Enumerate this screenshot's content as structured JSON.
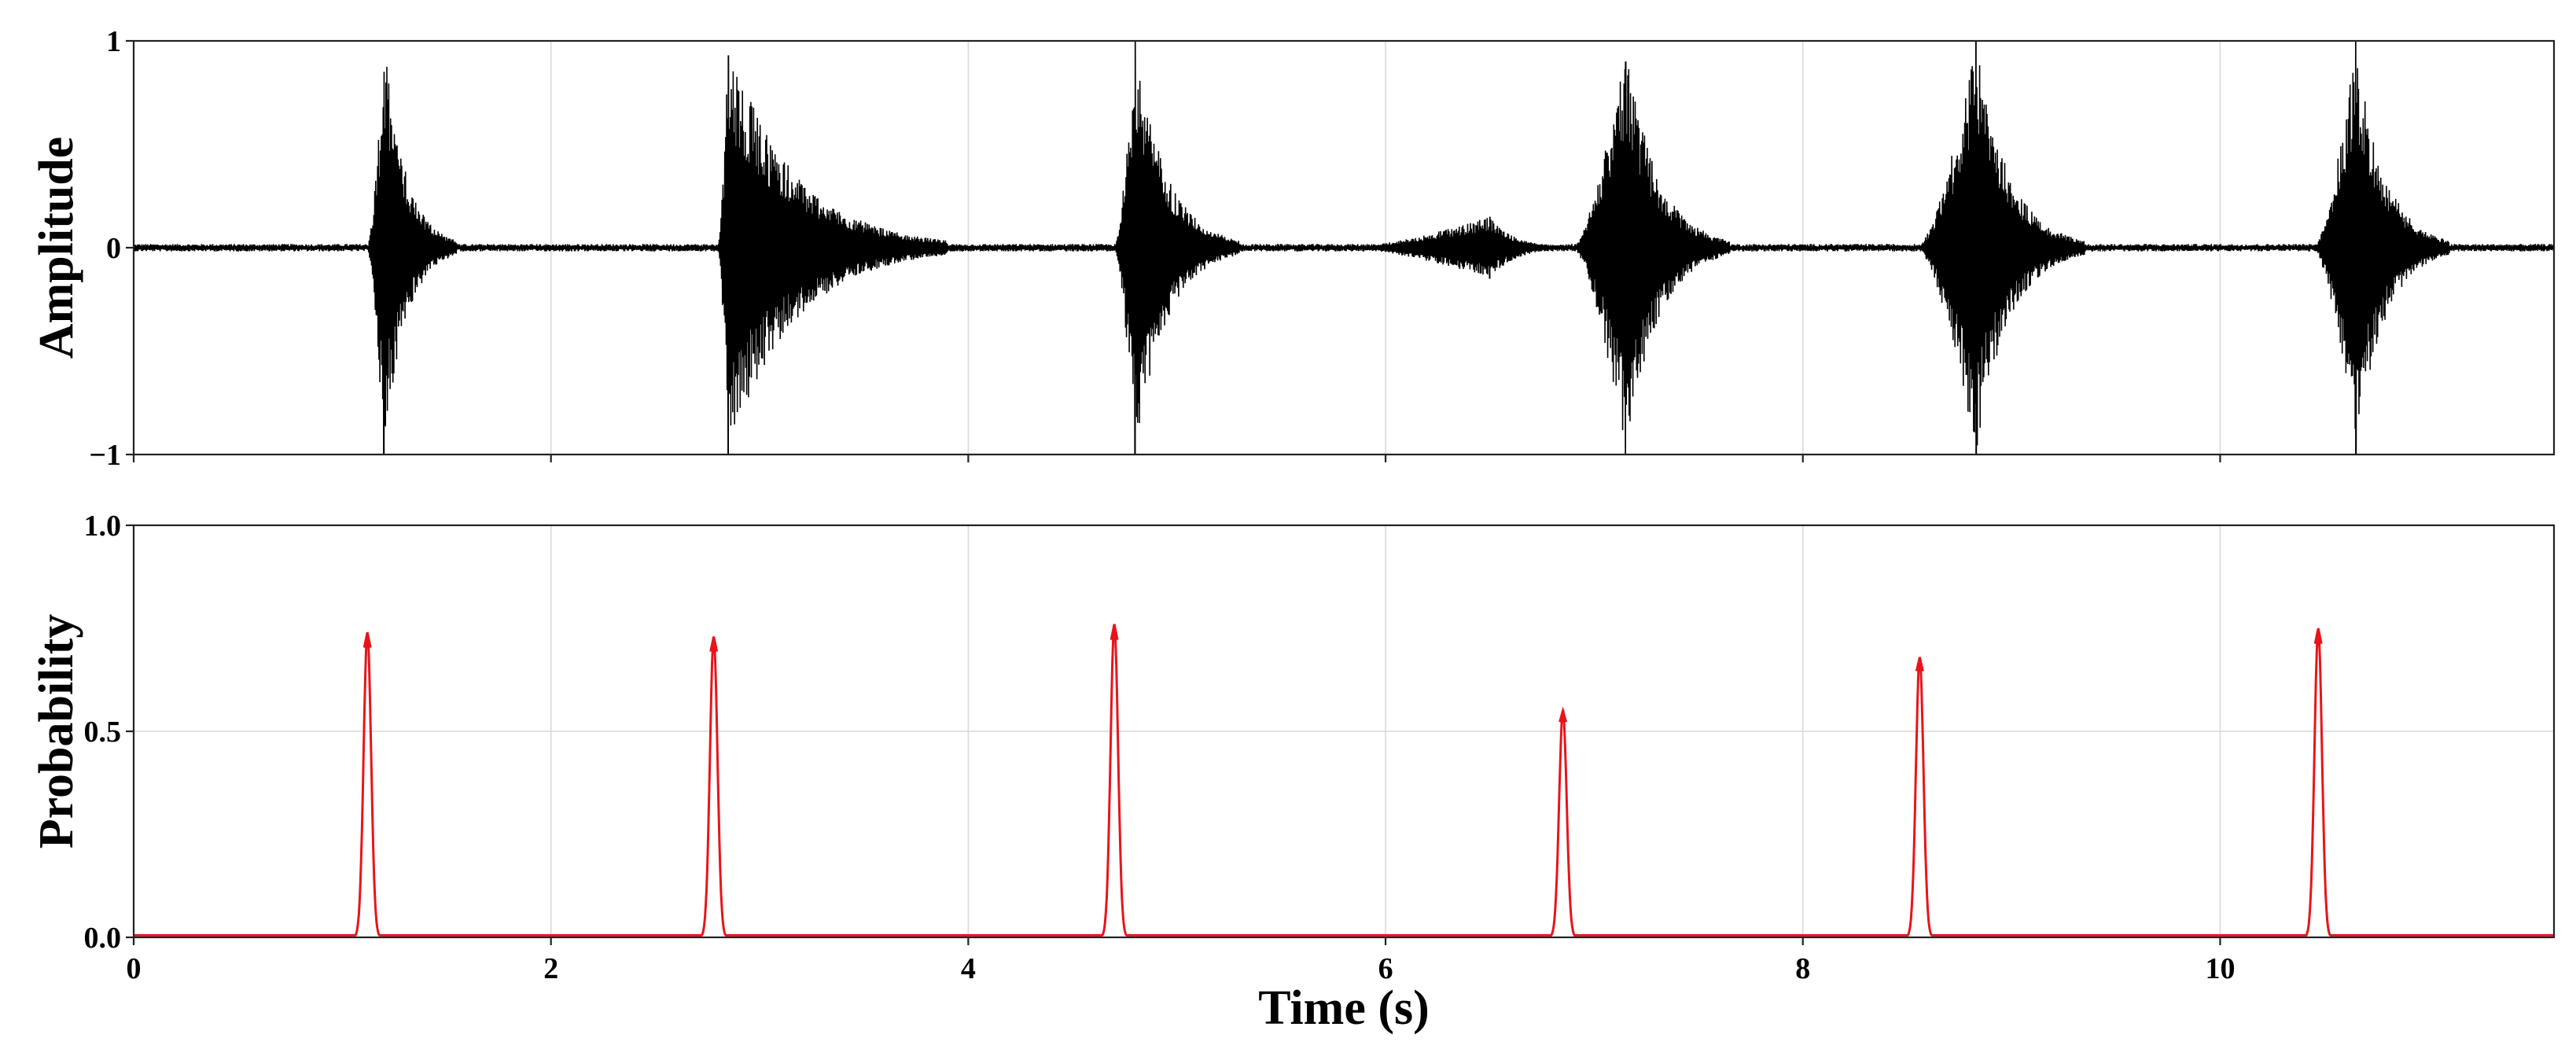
{
  "chart_data": [
    {
      "type": "line",
      "panel": "waveform",
      "xlabel": "",
      "ylabel": "Amplitude",
      "xlim": [
        0,
        11.6
      ],
      "ylim": [
        -1,
        1
      ],
      "yticks": [
        -1,
        0,
        1
      ],
      "ytick_labels": [
        "−1",
        "0",
        "1"
      ],
      "xticks": [
        0,
        2,
        4,
        6,
        8,
        10
      ],
      "xtick_labels_shown": false,
      "grid": true,
      "series": [
        {
          "color": "#000000",
          "noise_floor": 0.012,
          "bursts": [
            {
              "start": 1.12,
              "end": 1.55,
              "peak_time": 1.2,
              "peak_pos": 0.85,
              "peak_neg": -1.0
            },
            {
              "start": 2.8,
              "end": 3.9,
              "peak_time": 2.85,
              "peak_pos": 0.93,
              "peak_neg": -1.0
            },
            {
              "start": 4.7,
              "end": 5.3,
              "peak_time": 4.8,
              "peak_pos": 1.0,
              "peak_neg": -1.0
            },
            {
              "start": 5.8,
              "end": 6.9,
              "peak_time": 6.5,
              "peak_pos": 0.15,
              "peak_neg": -0.15
            },
            {
              "start": 6.9,
              "end": 7.65,
              "peak_time": 7.15,
              "peak_pos": 0.9,
              "peak_neg": -1.0
            },
            {
              "start": 8.55,
              "end": 9.35,
              "peak_time": 8.83,
              "peak_pos": 1.0,
              "peak_neg": -1.0
            },
            {
              "start": 10.45,
              "end": 11.1,
              "peak_time": 10.65,
              "peak_pos": 1.0,
              "peak_neg": -1.0
            }
          ]
        }
      ]
    },
    {
      "type": "line",
      "panel": "probability",
      "xlabel": "Time (s)",
      "ylabel": "Probability",
      "xlim": [
        0,
        11.6
      ],
      "ylim": [
        0,
        1
      ],
      "yticks": [
        0,
        0.5,
        1
      ],
      "ytick_labels": [
        "0.0",
        "0.5",
        "1.0"
      ],
      "xticks": [
        0,
        2,
        4,
        6,
        8,
        10
      ],
      "xtick_labels": [
        "0",
        "2",
        "4",
        "6",
        "8",
        "10"
      ],
      "grid": true,
      "series": [
        {
          "color": "#e8141b",
          "baseline": 0.005,
          "peaks": [
            {
              "t": 1.12,
              "p": 0.74
            },
            {
              "t": 2.78,
              "p": 0.73
            },
            {
              "t": 4.7,
              "p": 0.76
            },
            {
              "t": 6.85,
              "p": 0.55
            },
            {
              "t": 8.56,
              "p": 0.68
            },
            {
              "t": 10.47,
              "p": 0.75
            }
          ]
        }
      ]
    }
  ]
}
